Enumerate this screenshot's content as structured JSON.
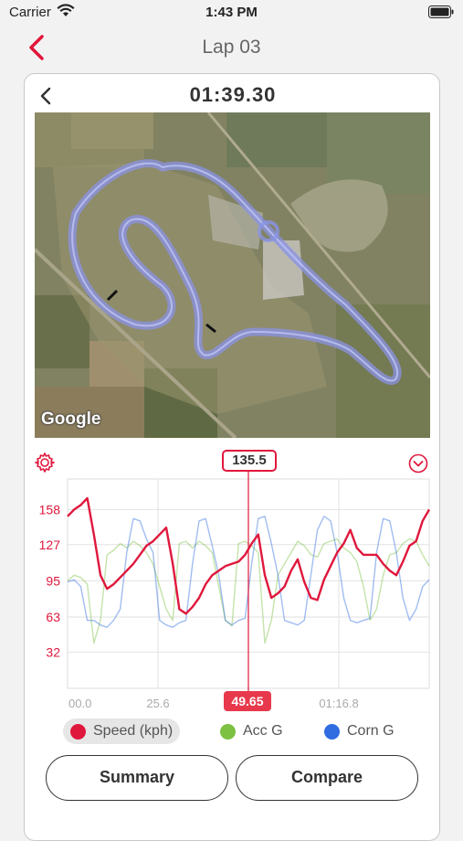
{
  "status": {
    "carrier": "Carrier",
    "time": "1:43 PM"
  },
  "nav": {
    "title": "Lap 03"
  },
  "card": {
    "lap_time": "01:39.30"
  },
  "map": {
    "attribution": "Google"
  },
  "chart_data": {
    "type": "line",
    "yticks": [
      "158",
      "127",
      "95",
      "63",
      "32"
    ],
    "xticks": [
      "00.0",
      "25.6",
      "",
      "01:16.8",
      ""
    ],
    "cursor_value": "135.5",
    "cursor_time": "49.65",
    "series": [
      {
        "name": "Speed (kph)",
        "color": "#e0173c",
        "values": [
          152,
          158,
          162,
          168,
          136,
          100,
          88,
          92,
          98,
          104,
          110,
          118,
          126,
          130,
          136,
          142,
          110,
          70,
          66,
          72,
          80,
          92,
          100,
          104,
          108,
          110,
          112,
          118,
          128,
          136,
          100,
          80,
          84,
          90,
          104,
          114,
          94,
          80,
          78,
          96,
          108,
          120,
          128,
          140,
          124,
          118,
          118,
          118,
          110,
          104,
          100,
          112,
          126,
          130,
          148,
          158
        ]
      },
      {
        "name": "Acc G",
        "color": "#7cc142",
        "values": [
          95,
          100,
          98,
          92,
          40,
          60,
          118,
          122,
          128,
          124,
          130,
          126,
          120,
          110,
          90,
          70,
          60,
          128,
          130,
          124,
          130,
          126,
          120,
          90,
          60,
          55,
          128,
          130,
          126,
          120,
          40,
          60,
          100,
          110,
          120,
          130,
          126,
          118,
          116,
          128,
          130,
          132,
          124,
          120,
          112,
          90,
          60,
          70,
          100,
          118,
          120,
          128,
          132,
          130,
          118,
          108
        ]
      },
      {
        "name": "Corn G",
        "color": "#2f6de1",
        "values": [
          94,
          96,
          90,
          60,
          60,
          56,
          54,
          60,
          70,
          120,
          150,
          148,
          132,
          120,
          60,
          56,
          54,
          58,
          60,
          110,
          148,
          150,
          126,
          100,
          60,
          56,
          60,
          62,
          110,
          150,
          152,
          128,
          100,
          60,
          58,
          56,
          60,
          100,
          140,
          152,
          148,
          120,
          80,
          60,
          58,
          60,
          62,
          120,
          150,
          148,
          120,
          80,
          60,
          70,
          90,
          96
        ]
      }
    ],
    "ylim": [
      0,
      185
    ]
  },
  "legend": {
    "speed": "Speed (kph)",
    "acc": "Acc G",
    "corn": "Corn G"
  },
  "buttons": {
    "summary": "Summary",
    "compare": "Compare"
  },
  "colors": {
    "accent": "#e0173c",
    "speed": "#e0173c",
    "acc": "#7cc142",
    "corn": "#2f6de1"
  }
}
